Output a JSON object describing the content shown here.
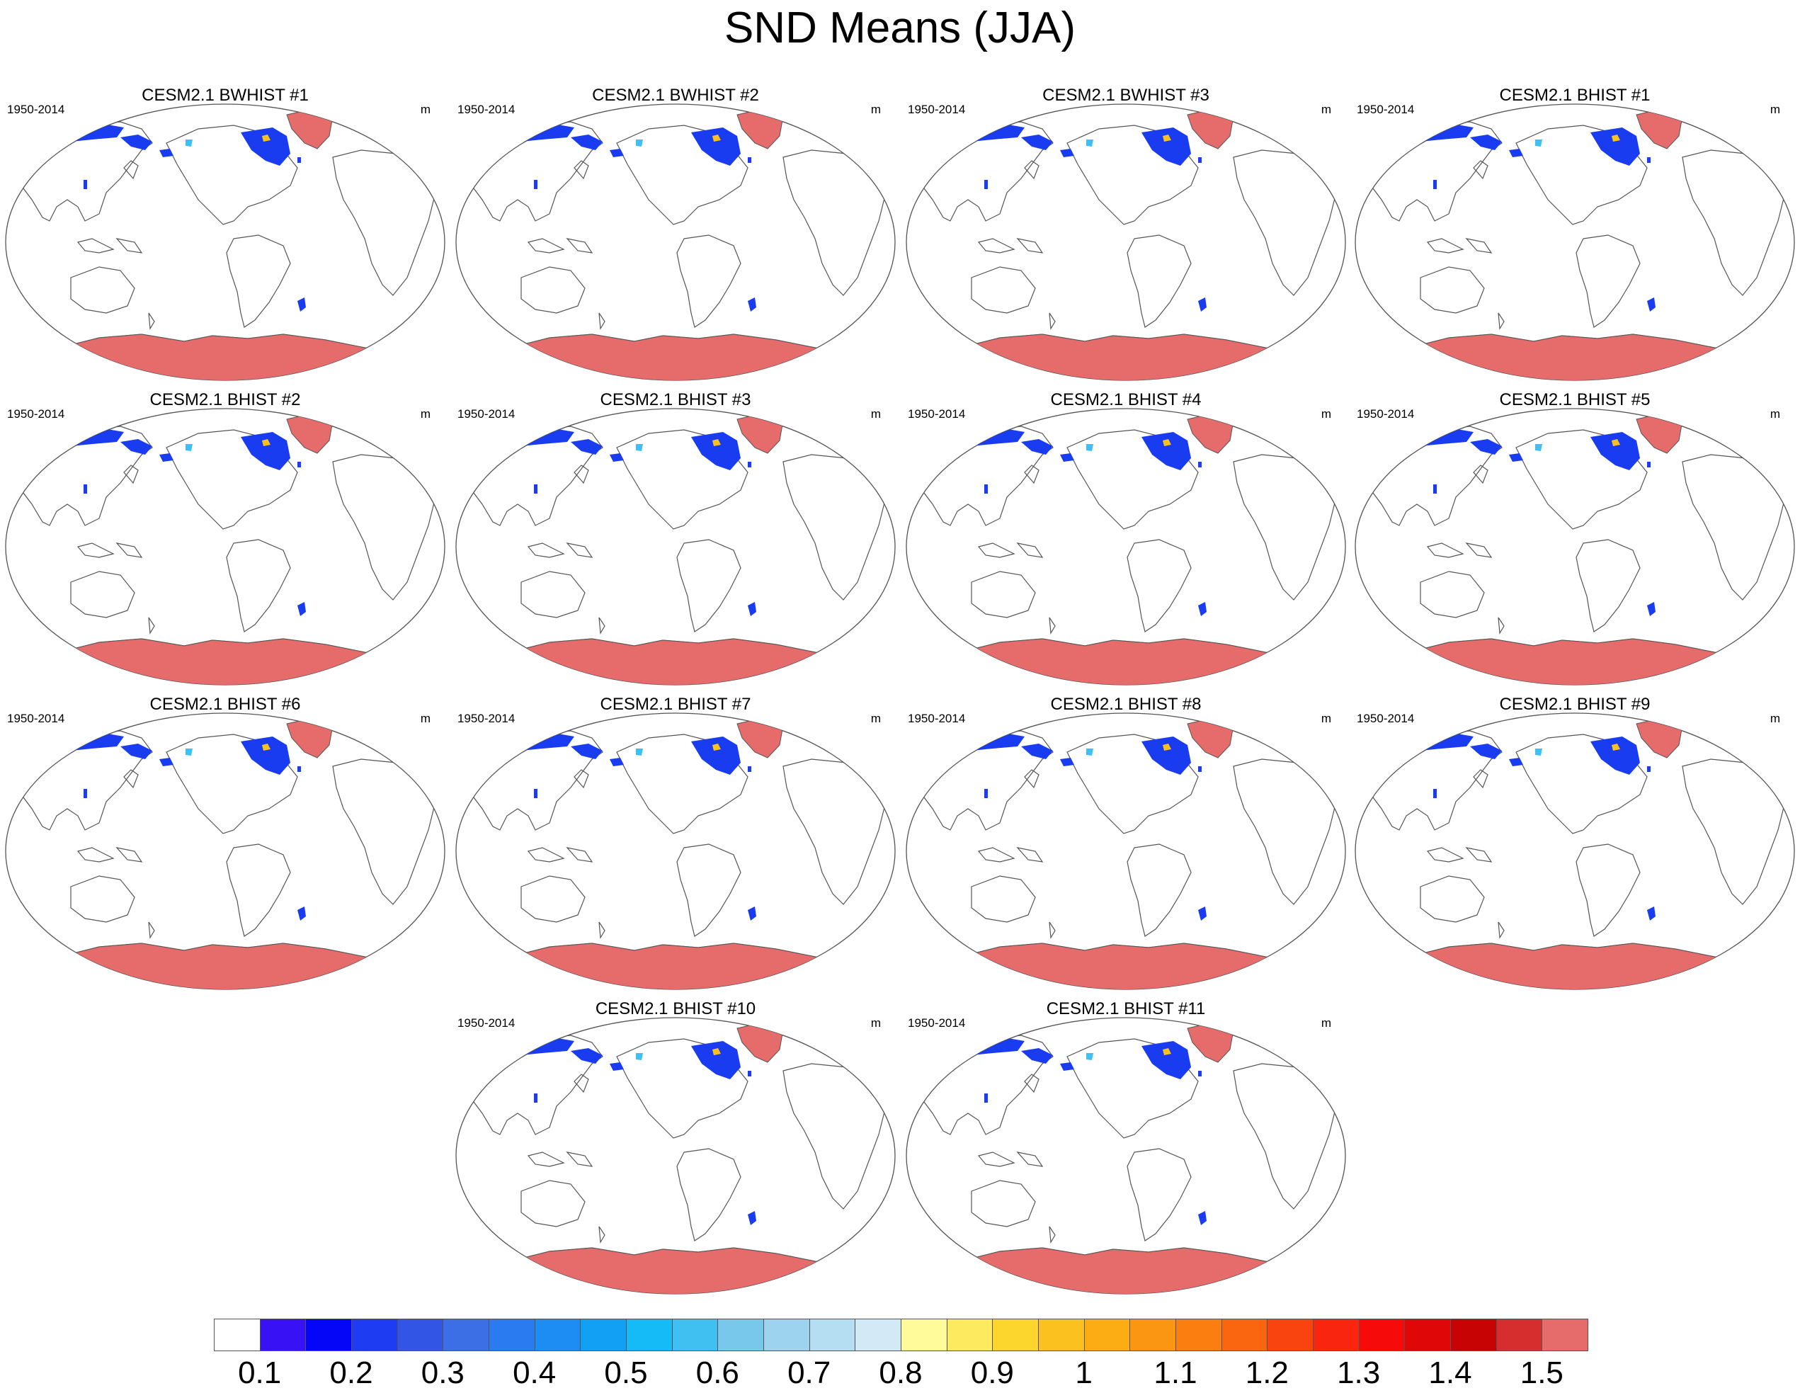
{
  "title": "SND Means (JJA)",
  "panels": [
    {
      "title": "CESM2.1 BWHIST #1",
      "left_label": "1950-2014",
      "right_label": "m"
    },
    {
      "title": "CESM2.1 BWHIST #2",
      "left_label": "1950-2014",
      "right_label": "m"
    },
    {
      "title": "CESM2.1 BWHIST #3",
      "left_label": "1950-2014",
      "right_label": "m"
    },
    {
      "title": "CESM2.1 BHIST #1",
      "left_label": "1950-2014",
      "right_label": "m"
    },
    {
      "title": "CESM2.1 BHIST #2",
      "left_label": "1950-2014",
      "right_label": "m"
    },
    {
      "title": "CESM2.1 BHIST #3",
      "left_label": "1950-2014",
      "right_label": "m"
    },
    {
      "title": "CESM2.1 BHIST #4",
      "left_label": "1950-2014",
      "right_label": "m"
    },
    {
      "title": "CESM2.1 BHIST #5",
      "left_label": "1950-2014",
      "right_label": "m"
    },
    {
      "title": "CESM2.1 BHIST #6",
      "left_label": "1950-2014",
      "right_label": "m"
    },
    {
      "title": "CESM2.1 BHIST #7",
      "left_label": "1950-2014",
      "right_label": "m"
    },
    {
      "title": "CESM2.1 BHIST #8",
      "left_label": "1950-2014",
      "right_label": "m"
    },
    {
      "title": "CESM2.1 BHIST #9",
      "left_label": "1950-2014",
      "right_label": "m"
    },
    {
      "title": "CESM2.1 BHIST #10",
      "left_label": "1950-2014",
      "right_label": "m"
    },
    {
      "title": "CESM2.1 BHIST #11",
      "left_label": "1950-2014",
      "right_label": "m"
    }
  ],
  "colorbar": {
    "colors": [
      "#ffffff",
      "#3812f5",
      "#0505f7",
      "#1e3cf2",
      "#3355e5",
      "#3c6ee6",
      "#2b7bf0",
      "#1d8df3",
      "#12a0f5",
      "#14bbf7",
      "#3fc0f0",
      "#78c8ec",
      "#9ed3f0",
      "#b5def2",
      "#d3e9f5",
      "#fffb9a",
      "#fdea5e",
      "#fcd62d",
      "#fbc21f",
      "#fbad13",
      "#fa9611",
      "#fa7e10",
      "#fa6610",
      "#fa4410",
      "#f9250f",
      "#f70a0a",
      "#df0707",
      "#c70303",
      "#d62e2e",
      "#e66b6b"
    ],
    "labels": [
      "0.1",
      "0.2",
      "0.3",
      "0.4",
      "0.5",
      "0.6",
      "0.7",
      "0.8",
      "0.9",
      "1",
      "1.1",
      "1.2",
      "1.3",
      "1.4",
      "1.5"
    ]
  },
  "map_colors": {
    "land_outline": "#555555",
    "high_snow": "#e66b6b",
    "low_snow": "#1a3cf0"
  }
}
